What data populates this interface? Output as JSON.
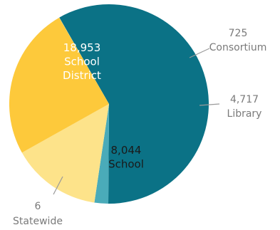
{
  "chart_data": {
    "type": "pie",
    "title": "",
    "slices": [
      {
        "label": "School District",
        "label_lines": [
          "18,953",
          "School",
          "District"
        ],
        "value": 18953,
        "color": "#0b7286"
      },
      {
        "label": "Consortium",
        "label_lines": [
          "725",
          "Consortium"
        ],
        "value": 725,
        "color": "#4aabb9"
      },
      {
        "label": "Library",
        "label_lines": [
          "4,717",
          "Library"
        ],
        "value": 4717,
        "color": "#fde38a"
      },
      {
        "label": "School",
        "label_lines": [
          "8,044",
          "School"
        ],
        "value": 8044,
        "color": "#fdc93b"
      },
      {
        "label": "Statewide",
        "label_lines": [
          "6",
          "Statewide"
        ],
        "value": 6,
        "color": "#f5edd6"
      }
    ]
  }
}
